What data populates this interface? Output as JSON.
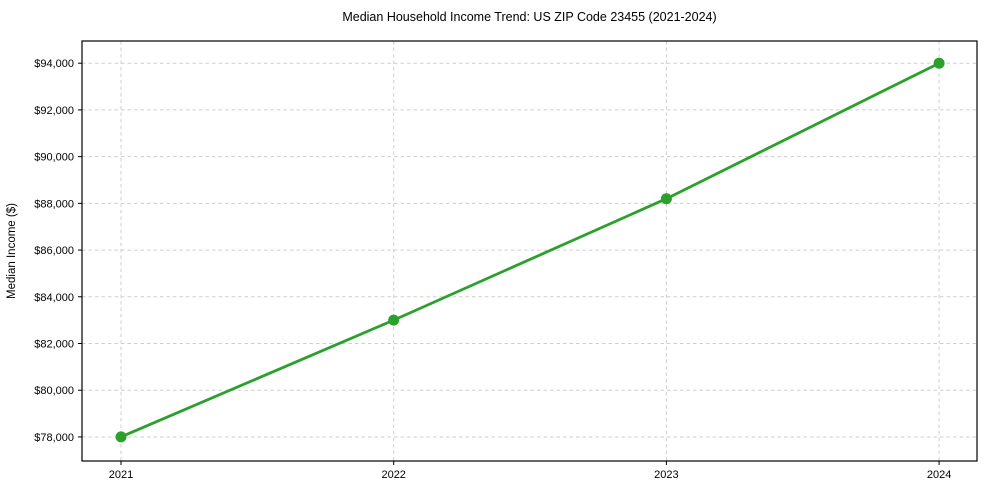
{
  "chart_data": {
    "type": "line",
    "title": "Median Household Income Trend: US ZIP Code 23455 (2021-2024)",
    "xlabel": "",
    "ylabel": "Median Income ($)",
    "x": [
      2021,
      2022,
      2023,
      2024
    ],
    "values": [
      78000,
      83000,
      88200,
      94000
    ],
    "xtick_labels": [
      "2021",
      "2022",
      "2023",
      "2024"
    ],
    "ytick_values": [
      78000,
      80000,
      82000,
      84000,
      86000,
      88000,
      90000,
      92000,
      94000
    ],
    "ytick_labels": [
      "$78,000",
      "$80,000",
      "$82,000",
      "$84,000",
      "$86,000",
      "$88,000",
      "$90,000",
      "$92,000",
      "$94,000"
    ],
    "xlim": [
      2020.857,
      2024.139
    ],
    "ylim": [
      76970,
      94950
    ],
    "grid": true,
    "grid_style": "dashed",
    "legend": "none",
    "line_color": "#2ca02c",
    "marker": "circle",
    "marker_radius": 5.5,
    "line_width": 2.8,
    "background": "#ffffff"
  }
}
